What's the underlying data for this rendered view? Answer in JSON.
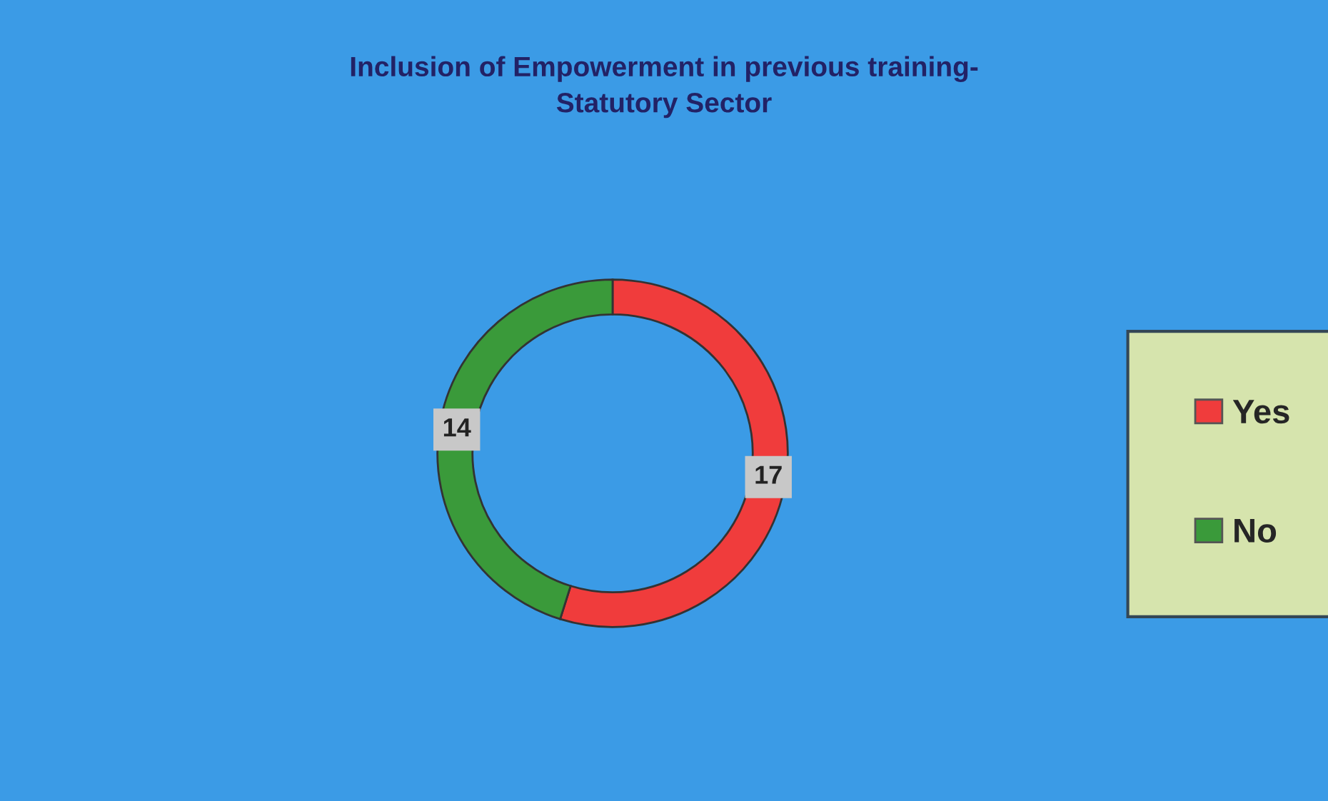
{
  "chart_data": {
    "type": "donut",
    "title": "Inclusion of Empowerment in previous training-\nStatutory Sector",
    "categories": [
      "Yes",
      "No"
    ],
    "values": [
      17,
      14
    ],
    "colors": [
      "#f03c3c",
      "#3a9a3a"
    ],
    "data_labels": true,
    "legend": "right"
  }
}
